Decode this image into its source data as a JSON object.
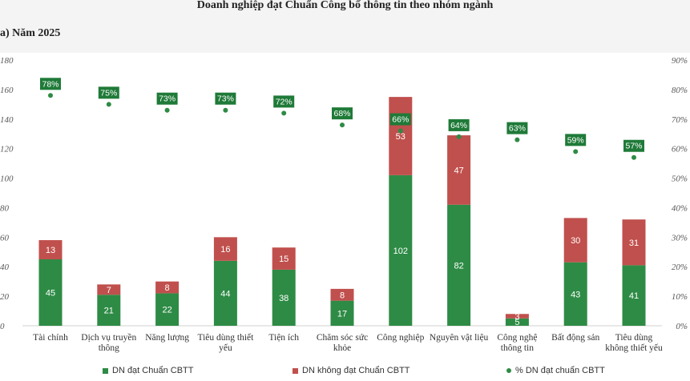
{
  "title": "Doanh nghiệp đạt Chuẩn Công bố thông tin theo nhóm ngành",
  "subtitle": "a) Năm 2025",
  "colors": {
    "achieved": "#2e8b45",
    "not_achieved": "#c0504d",
    "pct_dot": "#2e8b45",
    "pct_label_bg": "#1f7a38"
  },
  "chart_data": {
    "type": "bar",
    "stacked": true,
    "title": "Doanh nghiệp đạt Chuẩn Công bố thông tin theo nhóm ngành",
    "subtitle": "a) Năm 2025",
    "categories": [
      [
        "Tài chính"
      ],
      [
        "Dịch vụ truyền",
        "thông"
      ],
      [
        "Năng lượng"
      ],
      [
        "Tiêu dùng thiết",
        "yếu"
      ],
      [
        "Tiện ích"
      ],
      [
        "Chăm sóc sức",
        "khỏe"
      ],
      [
        "Công nghiệp"
      ],
      [
        "Nguyên vật liệu"
      ],
      [
        "Công nghệ",
        "thông tin"
      ],
      [
        "Bất động sản"
      ],
      [
        "Tiêu dùng",
        "không thiết yếu"
      ]
    ],
    "series": [
      {
        "name": "DN đạt Chuẩn CBTT",
        "values": [
          45,
          21,
          22,
          44,
          38,
          17,
          102,
          82,
          5,
          43,
          41
        ]
      },
      {
        "name": "DN không đạt Chuẩn CBTT",
        "values": [
          13,
          7,
          8,
          16,
          15,
          8,
          53,
          47,
          3,
          30,
          31
        ]
      },
      {
        "name": "% DN đạt chuẩn CBTT",
        "axis": "right",
        "values": [
          78,
          75,
          73,
          73,
          72,
          68,
          66,
          64,
          63,
          59,
          57
        ],
        "labels": [
          "78%",
          "75%",
          "73%",
          "73%",
          "72%",
          "68%",
          "66%",
          "64%",
          "63%",
          "59%",
          "57%"
        ]
      }
    ],
    "ylim": [
      0,
      180
    ],
    "yticks": [
      "0",
      "20",
      "40",
      "60",
      "80",
      "100",
      "120",
      "140",
      "160",
      "180"
    ],
    "y2lim": [
      0,
      90
    ],
    "y2ticks": [
      "0%",
      "10%",
      "20%",
      "30%",
      "40%",
      "50%",
      "60%",
      "70%",
      "80%",
      "90%"
    ],
    "grid": false,
    "legend_position": "bottom"
  },
  "legend": {
    "achieved": "DN đạt Chuẩn CBTT",
    "not_achieved": "DN không đạt Chuẩn CBTT",
    "pct": "% DN đạt chuẩn CBTT"
  }
}
